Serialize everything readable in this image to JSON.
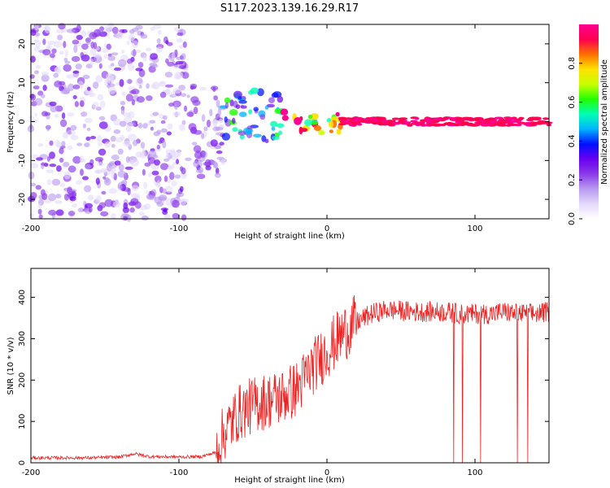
{
  "title": "S117.2023.139.16.29.R17",
  "colors": {
    "snr_line": "#ee2222",
    "colormap": [
      "#ffffff",
      "#e4d9fb",
      "#b99af0",
      "#8a3ae8",
      "#6a00f0",
      "#0010ff",
      "#00b4ff",
      "#00ffb4",
      "#22ff00",
      "#c8ff00",
      "#ffe000",
      "#ff7000",
      "#ff0050",
      "#ff0090"
    ]
  },
  "chart_data": [
    {
      "type": "heatmap",
      "title": "S117.2023.139.16.29.R17",
      "xlabel": "Height of straight line (km)",
      "ylabel": "Frequency (Hz)",
      "xlim": [
        -200,
        150
      ],
      "ylim": [
        -25,
        25
      ],
      "xticks": [
        "-200",
        "-100",
        "0",
        "100"
      ],
      "yticks": [
        "-20",
        "-10",
        "0",
        "10",
        "20"
      ],
      "grid": false,
      "colorbar": {
        "label": "Normalized spectral amplitude",
        "range": [
          0,
          1
        ],
        "ticks": [
          "0.0",
          "0.2",
          "0.4",
          "0.6",
          "0.8"
        ]
      },
      "regions": [
        {
          "x_range": [
            -200,
            -95
          ],
          "freq_range": [
            -25,
            25
          ],
          "amplitude": "0.0-0.3",
          "note": "diffuse noise"
        },
        {
          "x_range": [
            -95,
            -70
          ],
          "freq_range": [
            -15,
            10
          ],
          "amplitude": "0.1-0.3"
        },
        {
          "x_range": [
            -70,
            -30
          ],
          "freq_range": [
            -5,
            8
          ],
          "amplitude": "0.2-0.6"
        },
        {
          "x_range": [
            -30,
            10
          ],
          "freq_range": [
            -3,
            3
          ],
          "amplitude": "0.5-1.0"
        },
        {
          "x_range": [
            10,
            150
          ],
          "freq_range": [
            -1,
            1
          ],
          "amplitude": "0.9-1.0",
          "note": "narrow line near 0 Hz"
        }
      ]
    },
    {
      "type": "line",
      "xlabel": "Height of straight line (km)",
      "ylabel": "SNR (10 * v/v)",
      "xlim": [
        -200,
        150
      ],
      "ylim": [
        0,
        470
      ],
      "xticks": [
        "-200",
        "-100",
        "0",
        "100"
      ],
      "yticks": [
        "0",
        "100",
        "200",
        "300",
        "400"
      ],
      "grid": false,
      "series": [
        {
          "x": [
            -200,
            -180,
            -160,
            -140,
            -130,
            -120,
            -100,
            -85,
            -75,
            -70,
            -60,
            -50,
            -40,
            -30,
            -20,
            -10,
            0,
            10,
            20,
            30,
            40,
            60,
            80,
            90,
            100,
            110,
            120,
            130,
            140,
            150
          ],
          "values": [
            12,
            12,
            12,
            14,
            22,
            15,
            14,
            15,
            25,
            70,
            120,
            140,
            150,
            160,
            180,
            230,
            270,
            310,
            340,
            360,
            370,
            365,
            365,
            360,
            360,
            360,
            365,
            360,
            360,
            365
          ]
        }
      ]
    }
  ]
}
